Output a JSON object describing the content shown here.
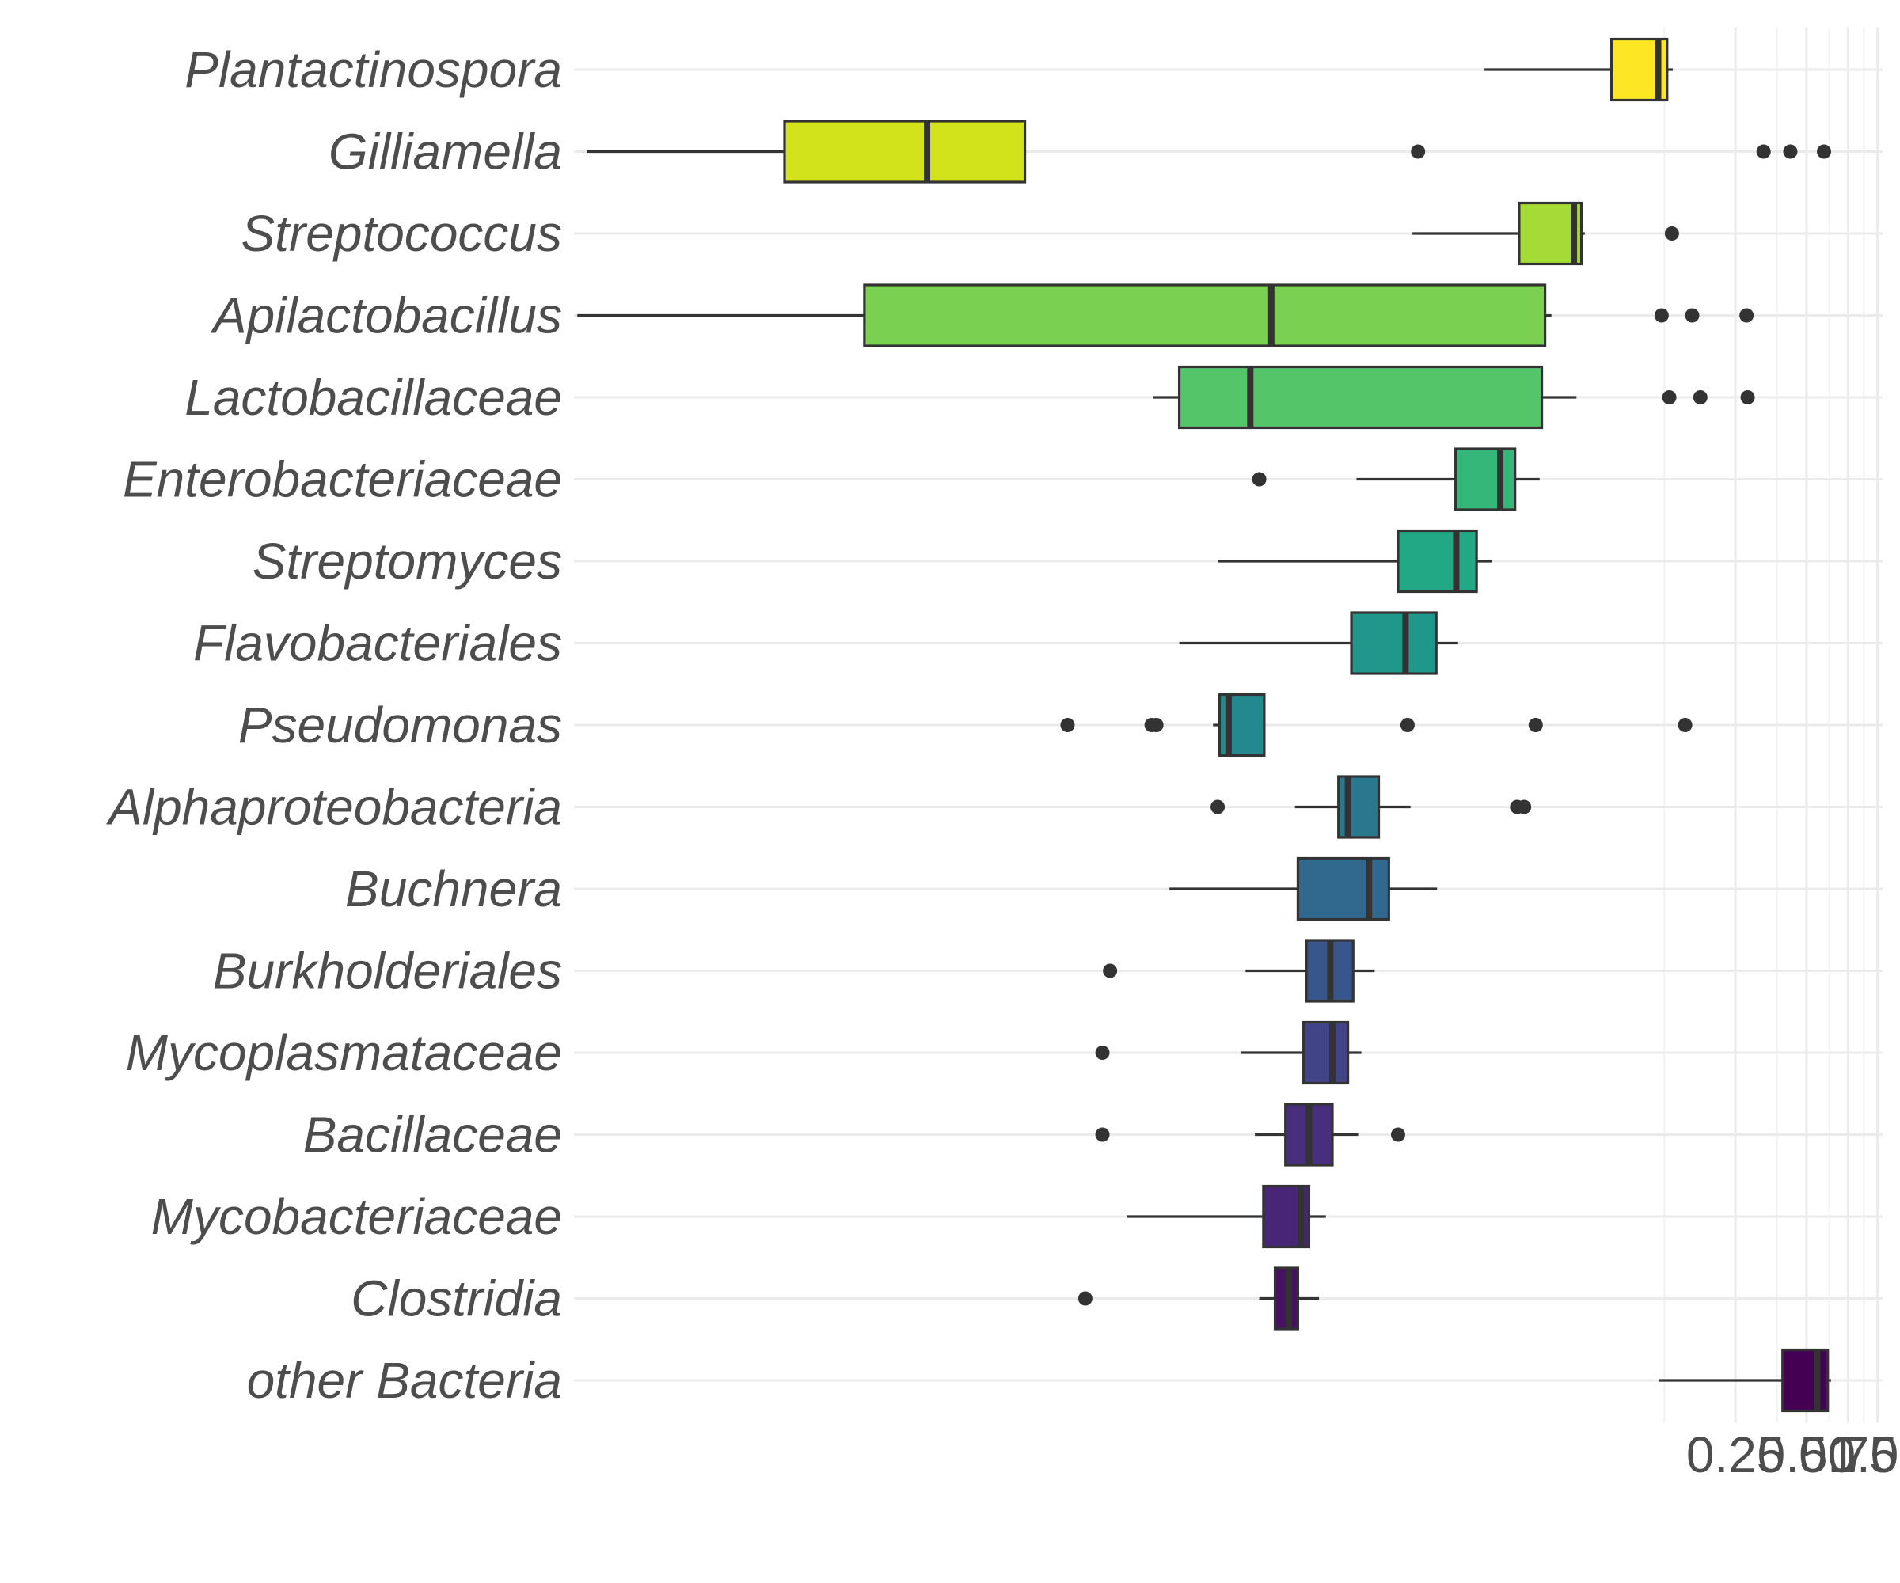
{
  "chart_data": {
    "type": "boxplot",
    "orientation": "horizontal",
    "x_scale": "log10",
    "xlim": [
      3e-06,
      1.05
    ],
    "grid": true,
    "x_ticks": [
      0.25,
      0.5,
      0.75,
      1.0
    ],
    "x_tick_labels": [
      "0.25",
      "0.50",
      "0.75",
      "1.00"
    ],
    "series": [
      {
        "category": "Plantactinospora",
        "color": "#FDE725",
        "whisker_low": 0.0216,
        "q1": 0.0746,
        "median": 0.1176,
        "q3": 0.1283,
        "whisker_high": 0.1357,
        "outliers": []
      },
      {
        "category": "Gilliamella",
        "color": "#D2E21B",
        "whisker_low": 3.4e-06,
        "q1": 2.34e-05,
        "median": 9.4e-05,
        "q3": 0.000244,
        "whisker_high": 0.000244,
        "outliers": [
          0.0113,
          0.329,
          0.427,
          0.593
        ]
      },
      {
        "category": "Streptococcus",
        "color": "#A5DB36",
        "whisker_low": 0.0107,
        "q1": 0.0303,
        "median": 0.0517,
        "q3": 0.0556,
        "whisker_high": 0.0575,
        "outliers": [
          0.1345
        ]
      },
      {
        "category": "Apilactobacillus",
        "color": "#7AD151",
        "whisker_low": 3.1e-06,
        "q1": 5.1e-05,
        "median": 0.0027,
        "q3": 0.039,
        "whisker_high": 0.0415,
        "outliers": [
          0.1216,
          0.1639,
          0.2785
        ]
      },
      {
        "category": "Lactobacillaceae",
        "color": "#54C568",
        "whisker_low": 0.00085,
        "q1": 0.0011,
        "median": 0.0022,
        "q3": 0.0378,
        "whisker_high": 0.053,
        "outliers": [
          0.1311,
          0.1775,
          0.2816
        ]
      },
      {
        "category": "Enterobacteriaceae",
        "color": "#35B779",
        "whisker_low": 0.0062,
        "q1": 0.0163,
        "median": 0.0252,
        "q3": 0.0291,
        "whisker_high": 0.037,
        "outliers": [
          0.0024
        ]
      },
      {
        "category": "Streptomyces",
        "color": "#22A884",
        "whisker_low": 0.0016,
        "q1": 0.0093,
        "median": 0.0164,
        "q3": 0.02,
        "whisker_high": 0.0232,
        "outliers": []
      },
      {
        "category": "Flavobacteriales",
        "color": "#1F988B",
        "whisker_low": 0.0011,
        "q1": 0.0059,
        "median": 0.01,
        "q3": 0.0135,
        "whisker_high": 0.0167,
        "outliers": []
      },
      {
        "category": "Pseudomonas",
        "color": "#23898E",
        "whisker_low": 0.00153,
        "q1": 0.00163,
        "median": 0.00178,
        "q3": 0.00252,
        "whisker_high": 0.00252,
        "outliers": [
          0.00037,
          0.00084,
          0.00088,
          0.0102,
          0.0356,
          0.153
        ]
      },
      {
        "category": "Alphaproteobacteria",
        "color": "#2A788E",
        "whisker_low": 0.0034,
        "q1": 0.0052,
        "median": 0.0057,
        "q3": 0.0077,
        "whisker_high": 0.0105,
        "outliers": [
          0.0016,
          0.0297,
          0.0318
        ]
      },
      {
        "category": "Buchnera",
        "color": "#31688E",
        "whisker_low": 0.001,
        "q1": 0.0035,
        "median": 0.007,
        "q3": 0.0085,
        "whisker_high": 0.0136,
        "outliers": []
      },
      {
        "category": "Burkholderiales",
        "color": "#39568C",
        "whisker_low": 0.0021,
        "q1": 0.0038,
        "median": 0.0048,
        "q3": 0.006,
        "whisker_high": 0.0074,
        "outliers": [
          0.00056
        ]
      },
      {
        "category": "Mycoplasmataceae",
        "color": "#414487",
        "whisker_low": 0.002,
        "q1": 0.0037,
        "median": 0.0049,
        "q3": 0.0057,
        "whisker_high": 0.0065,
        "outliers": [
          0.00052
        ]
      },
      {
        "category": "Bacillaceae",
        "color": "#472F7D",
        "whisker_low": 0.0023,
        "q1": 0.0031,
        "median": 0.0039,
        "q3": 0.0049,
        "whisker_high": 0.0063,
        "outliers": [
          0.00052,
          0.0093
        ]
      },
      {
        "category": "Mycobacteriaceae",
        "color": "#482576",
        "whisker_low": 0.00066,
        "q1": 0.0025,
        "median": 0.0036,
        "q3": 0.0039,
        "whisker_high": 0.0046,
        "outliers": []
      },
      {
        "category": "Clostridia",
        "color": "#471063",
        "whisker_low": 0.0024,
        "q1": 0.0028,
        "median": 0.0032,
        "q3": 0.0035,
        "whisker_high": 0.0043,
        "outliers": [
          0.00044
        ]
      },
      {
        "category": "other Bacteria",
        "color": "#440154",
        "whisker_low": 0.1183,
        "q1": 0.396,
        "median": 0.555,
        "q3": 0.6148,
        "whisker_high": 0.6354,
        "outliers": []
      }
    ]
  }
}
